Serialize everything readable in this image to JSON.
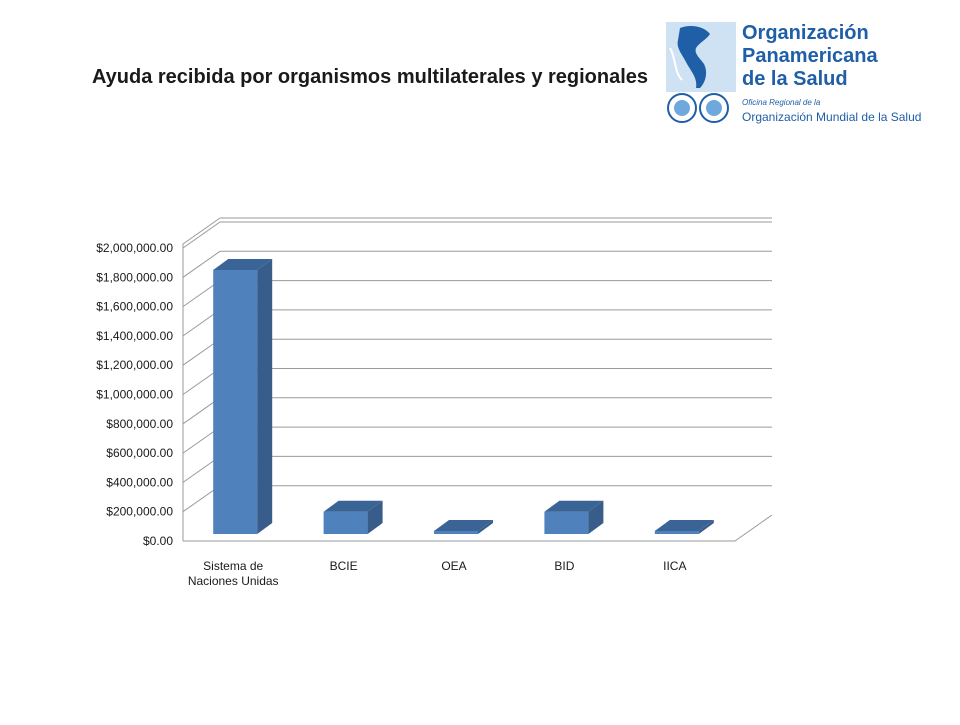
{
  "slide": {
    "title": "Ayuda recibida por organismos multilaterales y regionales"
  },
  "logo": {
    "line1": "Organización",
    "line2": "Panamericana",
    "line3": "de la Salud",
    "sub1": "Oficina Regional de la",
    "sub2": "Organización Mundial de la Salud",
    "colors": {
      "blue": "#1f5fa8",
      "light_blue": "#6fa8dc"
    }
  },
  "chart_data": {
    "type": "bar",
    "title": "",
    "xlabel": "",
    "ylabel": "",
    "categories": [
      "Sistema de\nNaciones Unidas",
      "BCIE",
      "OEA",
      "BID",
      "IICA"
    ],
    "values": [
      1850000,
      200000,
      35000,
      200000,
      15000
    ],
    "ylim": [
      0,
      2000000
    ],
    "y_ticks": [
      "$0.00",
      "$200,000.00",
      "$400,000.00",
      "$600,000.00",
      "$800,000.00",
      "$1,000,000.00",
      "$1,200,000.00",
      "$1,400,000.00",
      "$1,600,000.00",
      "$1,800,000.00",
      "$2,000,000.00"
    ],
    "grid": true,
    "legend": "none",
    "style": "3d",
    "colors": {
      "bar_front": "#4f81bd",
      "bar_side": "#385d8a",
      "bar_top": "#3b6496",
      "grid": "#9a9a9a"
    }
  }
}
